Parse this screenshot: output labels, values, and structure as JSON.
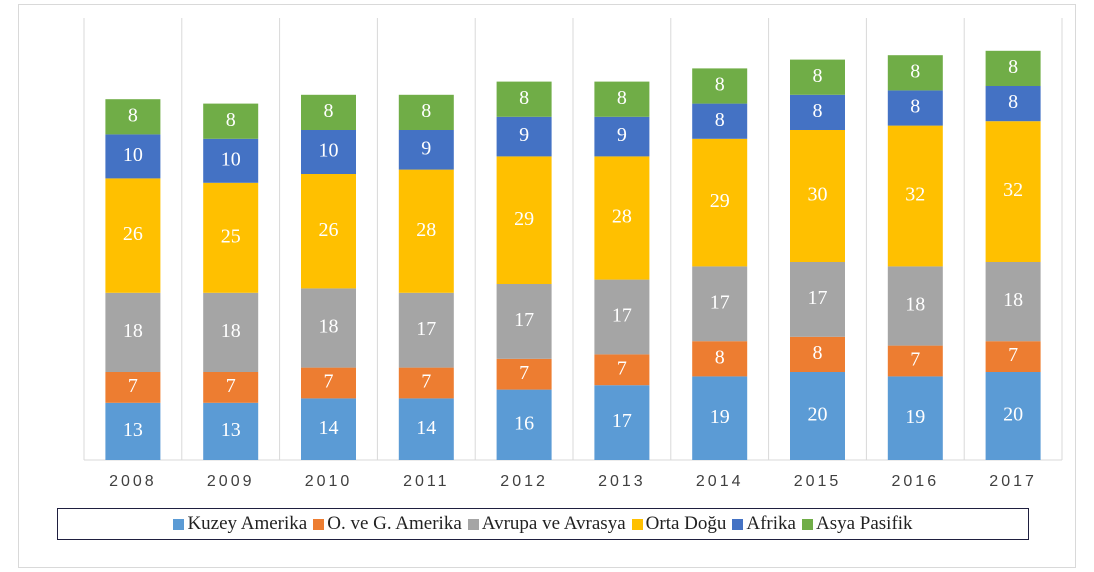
{
  "chart_data": {
    "type": "stacked_bar",
    "categories": [
      "2008",
      "2009",
      "2010",
      "2011",
      "2012",
      "2013",
      "2014",
      "2015",
      "2016",
      "2017"
    ],
    "series": [
      {
        "name": "Kuzey Amerika",
        "color": "#5b9bd5",
        "values": [
          13,
          13,
          14,
          14,
          16,
          17,
          19,
          20,
          19,
          20
        ]
      },
      {
        "name": "O. ve G. Amerika",
        "color": "#ed7d31",
        "values": [
          7,
          7,
          7,
          7,
          7,
          7,
          8,
          8,
          7,
          7
        ]
      },
      {
        "name": "Avrupa ve Avrasya",
        "color": "#a5a5a5",
        "values": [
          18,
          18,
          18,
          17,
          17,
          17,
          17,
          17,
          18,
          18
        ]
      },
      {
        "name": "Orta Doğu",
        "color": "#ffc000",
        "values": [
          26,
          25,
          26,
          28,
          29,
          28,
          29,
          30,
          32,
          32
        ]
      },
      {
        "name": "Afrika",
        "color": "#4472c4",
        "values": [
          10,
          10,
          10,
          9,
          9,
          9,
          8,
          8,
          8,
          8
        ]
      },
      {
        "name": "Asya Pasifik",
        "color": "#70ad47",
        "values": [
          8,
          8,
          8,
          8,
          8,
          8,
          8,
          8,
          8,
          8
        ]
      }
    ]
  }
}
